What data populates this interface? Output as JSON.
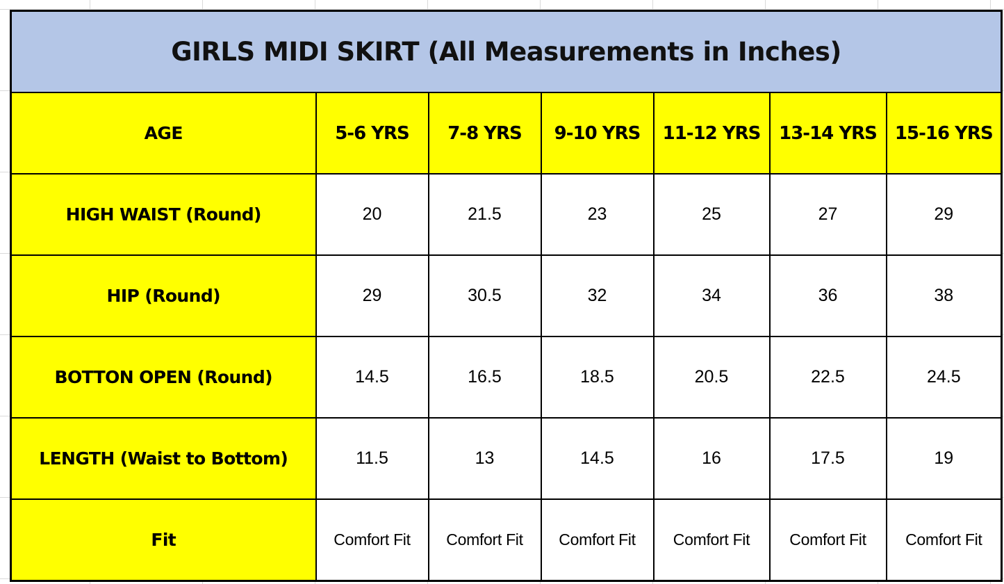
{
  "title": "GIRLS MIDI SKIRT (All Measurements in Inches)",
  "header": {
    "label": "AGE",
    "ages": [
      "5-6 YRS",
      "7-8 YRS",
      "9-10 YRS",
      "11-12 YRS",
      "13-14 YRS",
      "15-16 YRS"
    ]
  },
  "rows": [
    {
      "label": "HIGH WAIST (Round)",
      "values": [
        "20",
        "21.5",
        "23",
        "25",
        "27",
        "29"
      ]
    },
    {
      "label": "HIP (Round)",
      "values": [
        "29",
        "30.5",
        "32",
        "34",
        "36",
        "38"
      ]
    },
    {
      "label": "BOTTON OPEN (Round)",
      "values": [
        "14.5",
        "16.5",
        "18.5",
        "20.5",
        "22.5",
        "24.5"
      ]
    },
    {
      "label": "LENGTH (Waist to Bottom)",
      "values": [
        "11.5",
        "13",
        "14.5",
        "16",
        "17.5",
        "19"
      ]
    },
    {
      "label": "Fit",
      "values": [
        "Comfort Fit",
        "Comfort Fit",
        "Comfort Fit",
        "Comfort Fit",
        "Comfort Fit",
        "Comfort Fit"
      ]
    }
  ],
  "colors": {
    "title_background": "#b4c6e7",
    "label_background": "#ffff00",
    "value_background": "#ffffff",
    "border": "#000000"
  }
}
